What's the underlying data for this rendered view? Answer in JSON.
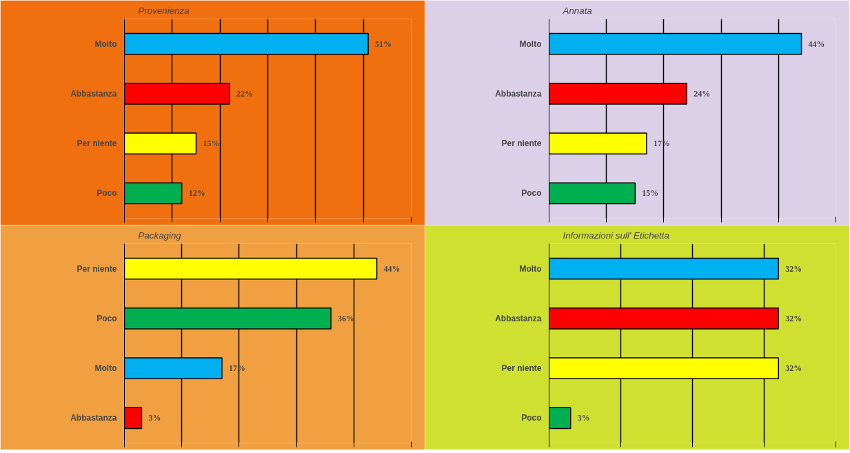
{
  "chart_data": [
    {
      "type": "bar",
      "orientation": "horizontal",
      "title": "Provenienza",
      "categories": [
        "Molto",
        "Abbastanza",
        "Per niente",
        "Poco"
      ],
      "values": [
        51,
        22,
        15,
        12
      ],
      "value_labels": [
        "51%",
        "22%",
        "15%",
        "12%"
      ],
      "colors": [
        "#00b0f0",
        "#ff0000",
        "#ffff00",
        "#00b050"
      ],
      "xlim": [
        0,
        60
      ],
      "xticks": [
        {
          "value": 0,
          "label": null
        },
        {
          "value": 10,
          "label": null
        },
        {
          "value": 20,
          "label": null
        },
        {
          "value": 30,
          "label": null
        },
        {
          "value": 40,
          "label": null
        },
        {
          "value": 50,
          "label": null
        },
        {
          "value": 60,
          "label": null
        }
      ],
      "grid": "x",
      "tick_labels": "y"
    },
    {
      "type": "bar",
      "orientation": "horizontal",
      "title": "Annata",
      "categories": [
        "Molto",
        "Abbastanza",
        "Per niente",
        "Poco"
      ],
      "values": [
        44,
        24,
        17,
        15
      ],
      "value_labels": [
        "44%",
        "24%",
        "17%",
        "15%"
      ],
      "colors": [
        "#00b0f0",
        "#ff0000",
        "#ffff00",
        "#00b050"
      ],
      "xlim": [
        0,
        50
      ],
      "xticks": [
        {
          "value": 0,
          "label": null
        },
        {
          "value": 10,
          "label": null
        },
        {
          "value": 20,
          "label": null
        },
        {
          "value": 30,
          "label": null
        },
        {
          "value": 40,
          "label": null
        },
        {
          "value": 50,
          "label": null
        }
      ],
      "grid": "x",
      "tick_labels": "y"
    },
    {
      "type": "bar",
      "orientation": "horizontal",
      "title": "Packaging",
      "categories": [
        "Per niente",
        "Poco",
        "Molto",
        "Abbastanza"
      ],
      "values": [
        44,
        36,
        17,
        3
      ],
      "value_labels": [
        "44%",
        "36%",
        "17%",
        "3%"
      ],
      "colors": [
        "#ffff00",
        "#00b050",
        "#00b0f0",
        "#ff0000"
      ],
      "xlim": [
        0,
        50
      ],
      "xticks": [
        {
          "value": 0,
          "label": null
        },
        {
          "value": 10,
          "label": null
        },
        {
          "value": 20,
          "label": null
        },
        {
          "value": 30,
          "label": null
        },
        {
          "value": 40,
          "label": null
        },
        {
          "value": 50,
          "label": null
        }
      ],
      "grid": "x",
      "tick_labels": "y"
    },
    {
      "type": "bar",
      "orientation": "horizontal",
      "title": "Informazioni  sull' Etichetta",
      "categories": [
        "Molto",
        "Abbastanza",
        "Per niente",
        "Poco"
      ],
      "values": [
        32,
        32,
        32,
        3
      ],
      "value_labels": [
        "32%",
        "32%",
        "32%",
        "3%"
      ],
      "colors": [
        "#00b0f0",
        "#ff0000",
        "#ffff00",
        "#00b050"
      ],
      "xlim": [
        0,
        40
      ],
      "xticks": [
        {
          "value": 0,
          "label": null
        },
        {
          "value": 10,
          "label": null
        },
        {
          "value": 20,
          "label": null
        },
        {
          "value": 30,
          "label": null
        },
        {
          "value": 40,
          "label": null
        }
      ],
      "grid": "x",
      "tick_labels": "y"
    }
  ]
}
